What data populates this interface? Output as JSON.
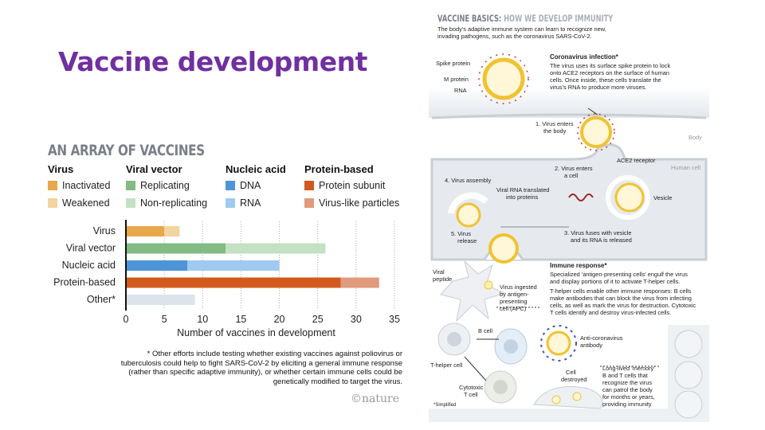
{
  "slide": {
    "title": "Vaccine development"
  },
  "chart_data": {
    "type": "bar",
    "orientation": "horizontal",
    "stacked": true,
    "title": "AN ARRAY OF VACCINES",
    "xlabel": "Number of vaccines in development",
    "ylabel": "",
    "xlim": [
      0,
      35
    ],
    "xticks": [
      0,
      5,
      10,
      15,
      20,
      25,
      30,
      35
    ],
    "grid": "vertical dotted",
    "categories": [
      "Virus",
      "Viral vector",
      "Nucleic acid",
      "Protein-based",
      "Other*"
    ],
    "segments": [
      [
        {
          "name": "Inactivated",
          "value": 5,
          "color": "#e8a74b"
        },
        {
          "name": "Weakened",
          "value": 2,
          "color": "#f3d3a0"
        }
      ],
      [
        {
          "name": "Replicating",
          "value": 13,
          "color": "#82bb84"
        },
        {
          "name": "Non-replicating",
          "value": 13,
          "color": "#c4e1c3"
        }
      ],
      [
        {
          "name": "DNA",
          "value": 8,
          "color": "#4d95d6"
        },
        {
          "name": "RNA",
          "value": 12,
          "color": "#9ecbef"
        }
      ],
      [
        {
          "name": "Protein subunit",
          "value": 28,
          "color": "#d25a1e"
        },
        {
          "name": "Virus-like particles",
          "value": 5,
          "color": "#e09a7c"
        }
      ],
      [
        {
          "name": "Other",
          "value": 9,
          "color": "#dde3ea"
        }
      ]
    ],
    "legend": {
      "placement": "top",
      "groups": [
        {
          "title": "Virus",
          "items": [
            {
              "label": "Inactivated",
              "color": "#e8a74b"
            },
            {
              "label": "Weakened",
              "color": "#f3d3a0"
            }
          ]
        },
        {
          "title": "Viral vector",
          "items": [
            {
              "label": "Replicating",
              "color": "#82bb84"
            },
            {
              "label": "Non-replicating",
              "color": "#c4e1c3"
            }
          ]
        },
        {
          "title": "Nucleic acid",
          "items": [
            {
              "label": "DNA",
              "color": "#4d95d6"
            },
            {
              "label": "RNA",
              "color": "#9ecbef"
            }
          ]
        },
        {
          "title": "Protein-based",
          "items": [
            {
              "label": "Protein subunit",
              "color": "#d25a1e"
            },
            {
              "label": "Virus-like particles",
              "color": "#e09a7c"
            }
          ]
        }
      ]
    },
    "footnote": "* Other efforts include testing whether existing vaccines against poliovirus or tuberculosis could help to fight SARS-CoV-2 by eliciting a general immune response (rather than specific adaptive immunity), or whether certain immune cells could be genetically modified to target the virus.",
    "credit": "©nature"
  },
  "diagram": {
    "title_a": "VACCINE BASICS:",
    "title_b": " HOW WE DEVELOP IMMUNITY",
    "subtitle1": "The body's adaptive immune system can learn to recognize new,",
    "subtitle2": "invading pathogens, such as the coronavirus SARS-CoV-2.",
    "spike": "Spike protein",
    "mprot": "M protein",
    "rna": "RNA",
    "inf_h": "Coronavirus infection*",
    "inf1": "The virus uses its surface spike protein to lock",
    "inf2": "onto ACE2 receptors on the surface of human",
    "inf3": "cells. Once inside, these cells translate the",
    "inf4": "virus's RNA to produce more viruses.",
    "s1a": "1. Virus enters",
    "s1b": "the body",
    "body": "Body",
    "ace2": "ACE2 receptor",
    "human": "Human cell",
    "s2a": "2. Virus enters",
    "s2b": "a cell",
    "s4": "4. Virus assembly",
    "tr1": "Viral RNA translated",
    "tr2": "into proteins",
    "vesicle": "Vesicle",
    "s3a": "3. Virus fuses with vesicle",
    "s3b": "and its RNA is released",
    "s5a": "5. Virus",
    "s5b": "release",
    "im_h": "Immune response*",
    "im1": "Specialized 'antigen-presenting cells' engulf the virus",
    "im2": "and display portions of it to activate T-helper cells.",
    "im3": "T-helper cells enable other immune responses: B cells",
    "im4": "make antibodies that can block the virus from infecting",
    "im5": "cells, as well as mark the virus for destruction. Cytotoxic",
    "im6": "T cells identify and destroy virus-infected cells.",
    "vp1": "Viral",
    "vp2": "peptide",
    "apc1": "Virus ingested",
    "apc2": "by antigen-",
    "apc3": "presenting",
    "apc4": "cell (APC)",
    "bcell": "B cell",
    "ab1": "Anti-coronavirus",
    "ab2": "antibody",
    "thelper": "T-helper cell",
    "cyt1": "Cytotoxic",
    "cyt2": "T cell",
    "cd1": "Cell",
    "cd2": "destroyed",
    "mem1": "Long-lived 'memory'",
    "mem2": "B and T cells that",
    "mem3": "recognize the virus",
    "mem4": "can patrol the body",
    "mem5": "for months or years,",
    "mem6": "providing immunity",
    "simplified": "*Simplified"
  }
}
